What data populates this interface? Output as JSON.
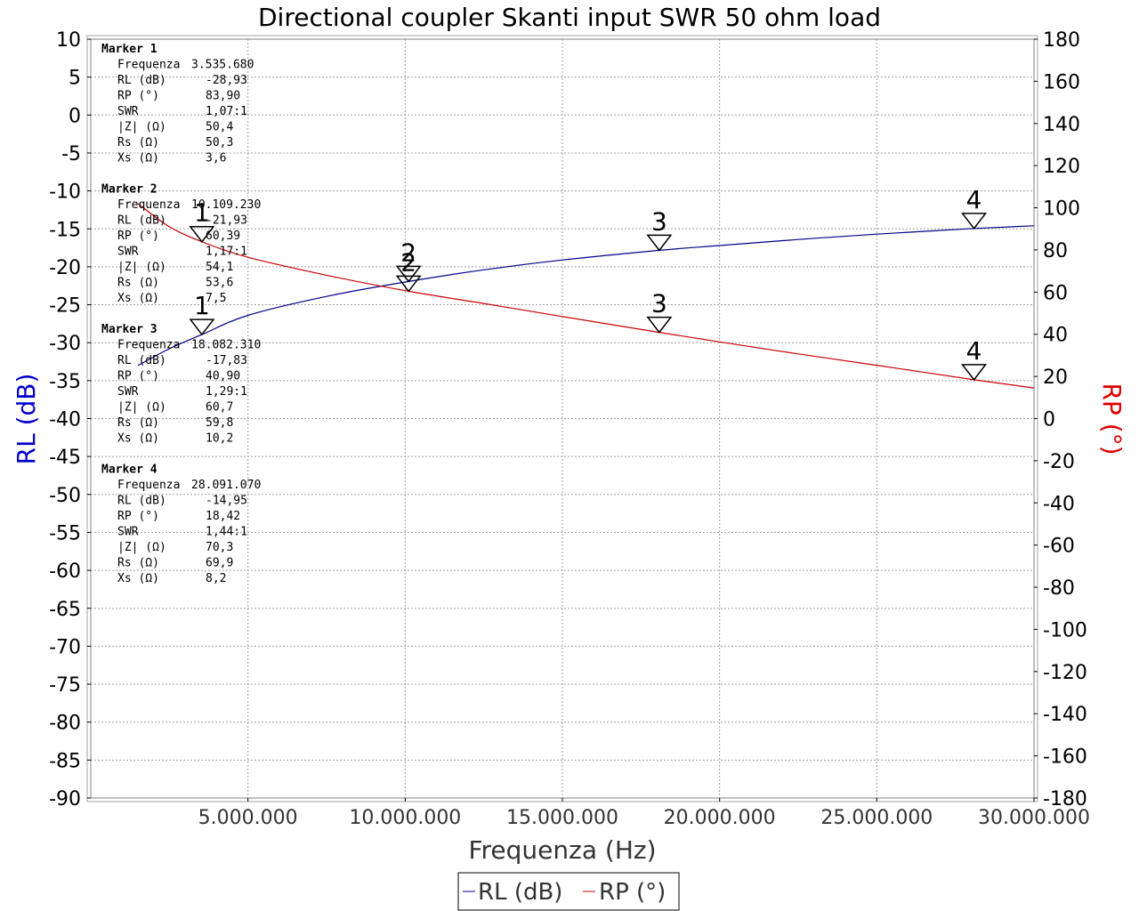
{
  "chart_data": {
    "type": "line",
    "title": "Directional coupler Skanti input SWR 50 ohm load",
    "xlabel": "Frequenza (Hz)",
    "ylabel_left": "RL (dB)",
    "ylabel_right": "RP (°)",
    "xlim": [
      0,
      30000000
    ],
    "ylim_left": [
      -90,
      10
    ],
    "ylim_right": [
      -180,
      180
    ],
    "x_ticks": [
      5000000,
      10000000,
      15000000,
      20000000,
      25000000,
      30000000
    ],
    "x_tick_labels": [
      "5.000.000",
      "10.000.000",
      "15.000.000",
      "20.000.000",
      "25.000.000",
      "30.000.000"
    ],
    "y_left_ticks": [
      10,
      5,
      0,
      -5,
      -10,
      -15,
      -20,
      -25,
      -30,
      -35,
      -40,
      -45,
      -50,
      -55,
      -60,
      -65,
      -70,
      -75,
      -80,
      -85,
      -90
    ],
    "y_left_tick_labels": [
      "10",
      "5",
      "0",
      "-5",
      "-10",
      "-15",
      "-20",
      "-25",
      "-30",
      "-35",
      "-40",
      "-45",
      "-50",
      "-55",
      "-60",
      "-65",
      "-70",
      "-75",
      "-80",
      "-85",
      "-90"
    ],
    "y_right_ticks": [
      180,
      160,
      140,
      120,
      100,
      80,
      60,
      40,
      20,
      0,
      -20,
      -40,
      -60,
      -80,
      -100,
      -120,
      -140,
      -160,
      -180
    ],
    "y_right_tick_labels": [
      "180",
      "160",
      "140",
      "120",
      "100",
      "80",
      "60",
      "40",
      "20",
      "0",
      "-20",
      "-40",
      "-60",
      "-80",
      "-100",
      "-120",
      "-140",
      "-160",
      "-180"
    ],
    "grid": true,
    "legend_position": "bottom-center",
    "series": [
      {
        "name": "RL (dB)",
        "axis": "left",
        "color": "#00008B",
        "x": [
          1500000,
          2500000,
          3535680,
          5000000,
          7500000,
          10109230,
          12500000,
          15000000,
          18082310,
          20000000,
          22500000,
          25000000,
          28091070,
          30000000
        ],
        "values": [
          -33.0,
          -30.8,
          -28.93,
          -26.4,
          -23.9,
          -21.93,
          -20.4,
          -19.1,
          -17.83,
          -17.2,
          -16.4,
          -15.7,
          -14.95,
          -14.6
        ]
      },
      {
        "name": "RP (°)",
        "axis": "right",
        "color": "#CC0000",
        "x": [
          1500000,
          2500000,
          3535680,
          5000000,
          7500000,
          10109230,
          12500000,
          15000000,
          18082310,
          20000000,
          22500000,
          25000000,
          28091070,
          30000000
        ],
        "values": [
          102,
          91,
          83.9,
          76.5,
          68,
          60.39,
          54.6,
          48.4,
          40.9,
          36.4,
          30.7,
          25.3,
          18.42,
          14.5
        ]
      }
    ],
    "markers": [
      {
        "label": "1",
        "x": 3535680,
        "rl": -28.93,
        "rp": 83.9
      },
      {
        "label": "2",
        "x": 10109230,
        "rl": -21.93,
        "rp": 60.39
      },
      {
        "label": "3",
        "x": 18082310,
        "rl": -17.83,
        "rp": 40.9
      },
      {
        "label": "4",
        "x": 28091070,
        "rl": -14.95,
        "rp": 18.42
      }
    ]
  },
  "marker_info": [
    {
      "header": "Marker 1",
      "rows": [
        {
          "name": "Frequenza",
          "value": "3.535.680"
        },
        {
          "name": "RL (dB)",
          "value": "-28,93"
        },
        {
          "name": "RP (°)",
          "value": "83,90"
        },
        {
          "name": "SWR",
          "value": "1,07:1"
        },
        {
          "name": "|Z| (Ω)",
          "value": "50,4"
        },
        {
          "name": "Rs (Ω)",
          "value": "50,3"
        },
        {
          "name": "Xs (Ω)",
          "value": "3,6"
        }
      ]
    },
    {
      "header": "Marker 2",
      "rows": [
        {
          "name": "Frequenza",
          "value": "10.109.230"
        },
        {
          "name": "RL (dB)",
          "value": "-21,93"
        },
        {
          "name": "RP (°)",
          "value": "60,39"
        },
        {
          "name": "SWR",
          "value": "1,17:1"
        },
        {
          "name": "|Z| (Ω)",
          "value": "54,1"
        },
        {
          "name": "Rs (Ω)",
          "value": "53,6"
        },
        {
          "name": "Xs (Ω)",
          "value": "7,5"
        }
      ]
    },
    {
      "header": "Marker 3",
      "rows": [
        {
          "name": "Frequenza",
          "value": "18.082.310"
        },
        {
          "name": "RL (dB)",
          "value": "-17,83"
        },
        {
          "name": "RP (°)",
          "value": "40,90"
        },
        {
          "name": "SWR",
          "value": "1,29:1"
        },
        {
          "name": "|Z| (Ω)",
          "value": "60,7"
        },
        {
          "name": "Rs (Ω)",
          "value": "59,8"
        },
        {
          "name": "Xs (Ω)",
          "value": "10,2"
        }
      ]
    },
    {
      "header": "Marker 4",
      "rows": [
        {
          "name": "Frequenza",
          "value": "28.091.070"
        },
        {
          "name": "RL (dB)",
          "value": "-14,95"
        },
        {
          "name": "RP (°)",
          "value": "18,42"
        },
        {
          "name": "SWR",
          "value": "1,44:1"
        },
        {
          "name": "|Z| (Ω)",
          "value": "70,3"
        },
        {
          "name": "Rs (Ω)",
          "value": "69,9"
        },
        {
          "name": "Xs (Ω)",
          "value": "8,2"
        }
      ]
    }
  ],
  "legend": {
    "items": [
      {
        "label": "RL (dB)",
        "color": "#00008B"
      },
      {
        "label": "RP (°)",
        "color": "#CC0000"
      }
    ]
  },
  "colors": {
    "left_axis_label": "#0000CC",
    "right_axis_label": "#DD0000",
    "grid": "#A0A0A0",
    "frame": "#808080"
  }
}
